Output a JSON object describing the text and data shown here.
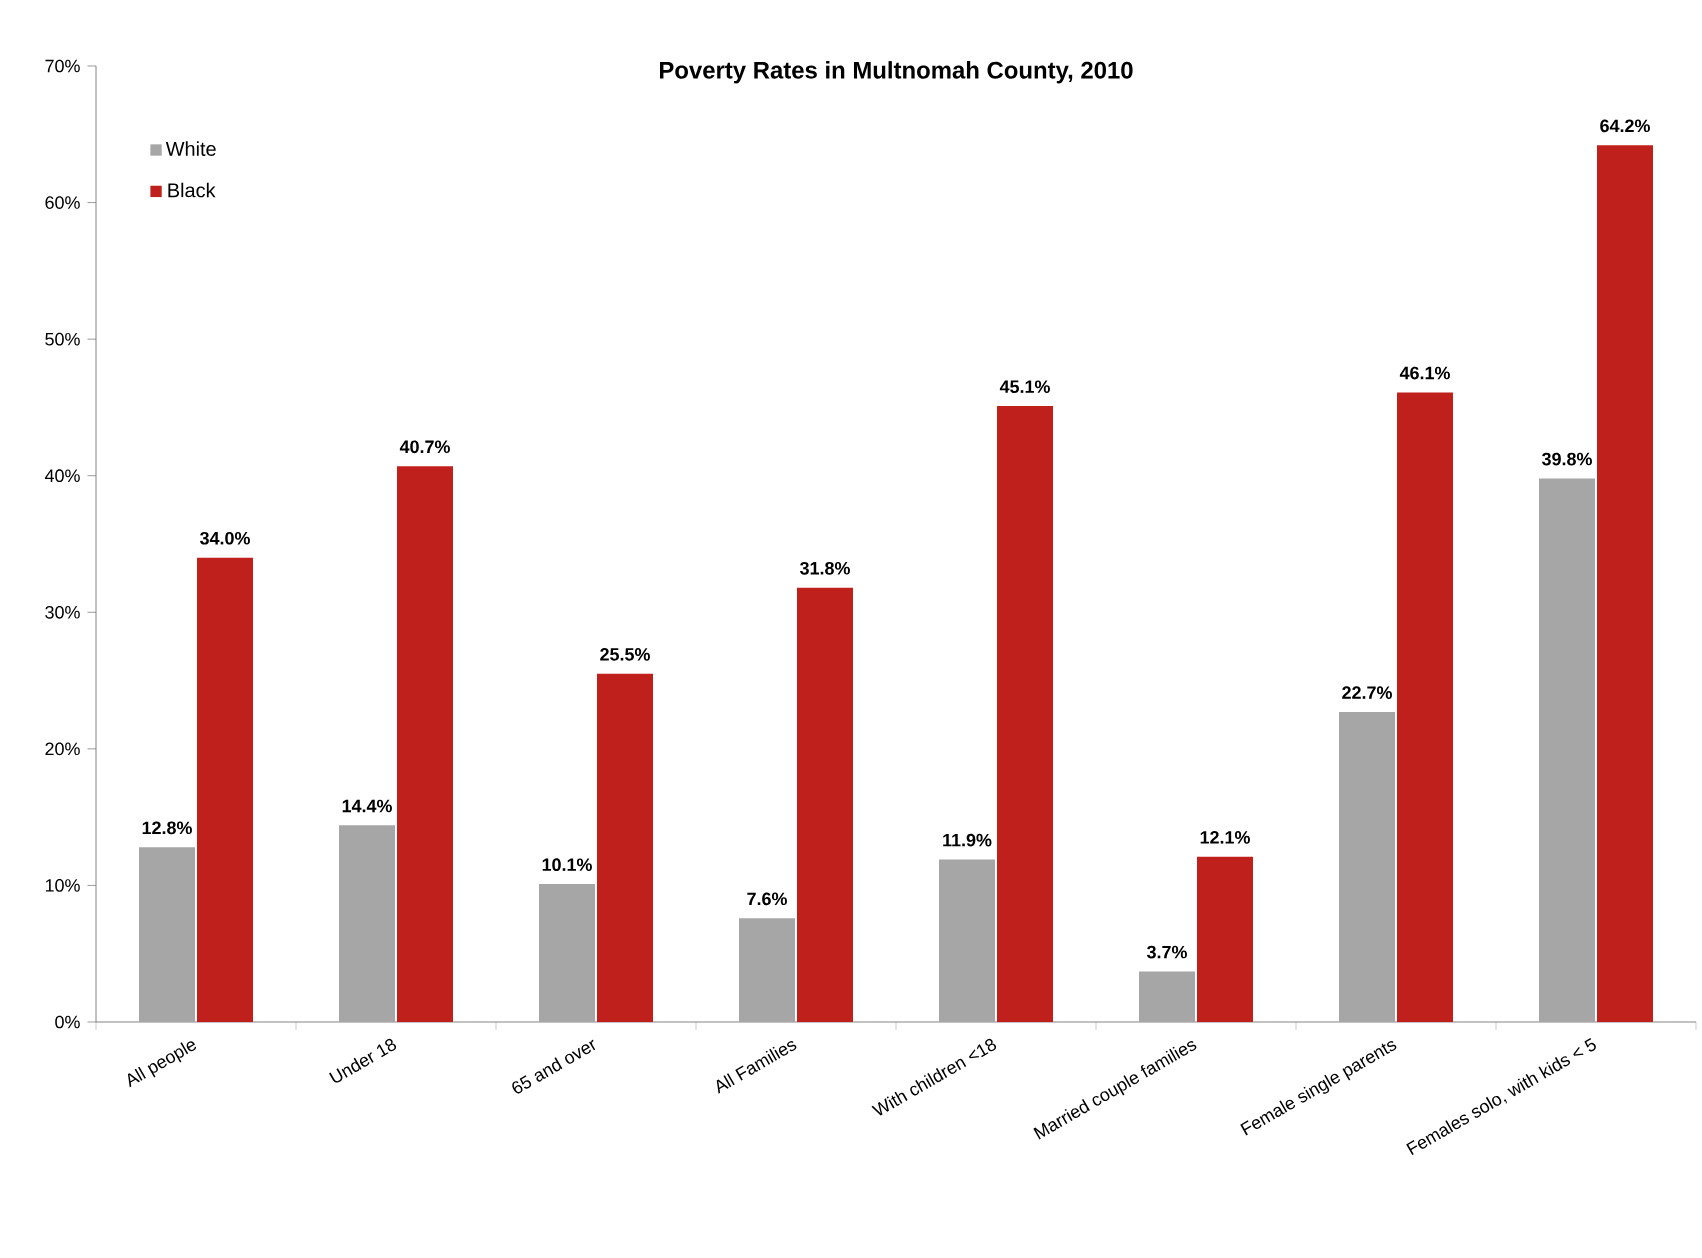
{
  "chart_data": {
    "type": "bar",
    "title": "Poverty Rates in Multnomah County, 2010",
    "categories": [
      "All people",
      "Under 18",
      "65 and over",
      "All Families",
      "With children <18",
      "Married couple families",
      "Female single parents",
      "Females solo, with kids < 5"
    ],
    "series": [
      {
        "name": "White",
        "color": "#a6a6a6",
        "values": [
          12.8,
          14.4,
          10.1,
          7.6,
          11.9,
          3.7,
          22.7,
          39.8
        ],
        "value_labels": [
          "12.8%",
          "14.4%",
          "10.1%",
          "7.6%",
          "11.9%",
          "3.7%",
          "22.7%",
          "39.8%"
        ]
      },
      {
        "name": "Black",
        "color": "#c0201c",
        "values": [
          34.0,
          40.7,
          25.5,
          31.8,
          45.1,
          12.1,
          46.1,
          64.2
        ],
        "value_labels": [
          "34.0%",
          "40.7%",
          "25.5%",
          "31.8%",
          "45.1%",
          "12.1%",
          "46.1%",
          "64.2%"
        ]
      }
    ],
    "ylim": [
      0,
      70
    ],
    "yticks": [
      {
        "value": 0,
        "label": "0%"
      },
      {
        "value": 10,
        "label": "10%"
      },
      {
        "value": 20,
        "label": "20%"
      },
      {
        "value": 30,
        "label": "30%"
      },
      {
        "value": 40,
        "label": "40%"
      },
      {
        "value": 50,
        "label": "50%"
      },
      {
        "value": 60,
        "label": "60%"
      },
      {
        "value": 70,
        "label": "70%"
      }
    ],
    "legend": "top left"
  }
}
